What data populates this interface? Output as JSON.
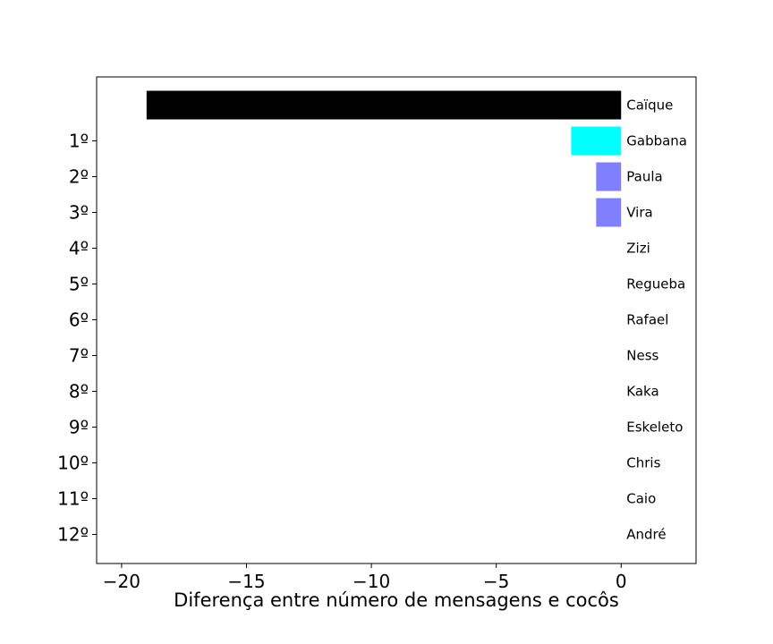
{
  "chart_data": {
    "type": "bar",
    "orientation": "horizontal",
    "title": "",
    "xlabel": "Diferença entre número de mensagens e cocôs",
    "ylabel": "",
    "xlim": [
      -21,
      3
    ],
    "x_ticks": [
      -20,
      -15,
      -10,
      -5,
      0
    ],
    "x_tick_labels": [
      "−20",
      "−15",
      "−10",
      "−5",
      "0"
    ],
    "grid": false,
    "legend": "none",
    "bars": [
      {
        "rank": "",
        "name": "Caïque",
        "value": -19,
        "color": "#000000"
      },
      {
        "rank": "1º",
        "name": "Gabbana",
        "value": -2,
        "color": "#00ffff"
      },
      {
        "rank": "2º",
        "name": "Paula",
        "value": -1,
        "color": "#8080ff"
      },
      {
        "rank": "3º",
        "name": "Vira",
        "value": -1,
        "color": "#8080ff"
      },
      {
        "rank": "4º",
        "name": "Zizi",
        "value": 0,
        "color": "#8080ff"
      },
      {
        "rank": "5º",
        "name": "Regueba",
        "value": 0,
        "color": "#8080ff"
      },
      {
        "rank": "6º",
        "name": "Rafael",
        "value": 0,
        "color": "#8080ff"
      },
      {
        "rank": "7º",
        "name": "Ness",
        "value": 0,
        "color": "#8080ff"
      },
      {
        "rank": "8º",
        "name": "Kaka",
        "value": 0,
        "color": "#8080ff"
      },
      {
        "rank": "9º",
        "name": "Eskeleto",
        "value": 0,
        "color": "#8080ff"
      },
      {
        "rank": "10º",
        "name": "Chris",
        "value": 0,
        "color": "#8080ff"
      },
      {
        "rank": "11º",
        "name": "Caio",
        "value": 0,
        "color": "#8080ff"
      },
      {
        "rank": "12º",
        "name": "André",
        "value": 0,
        "color": "#8080ff"
      }
    ]
  }
}
